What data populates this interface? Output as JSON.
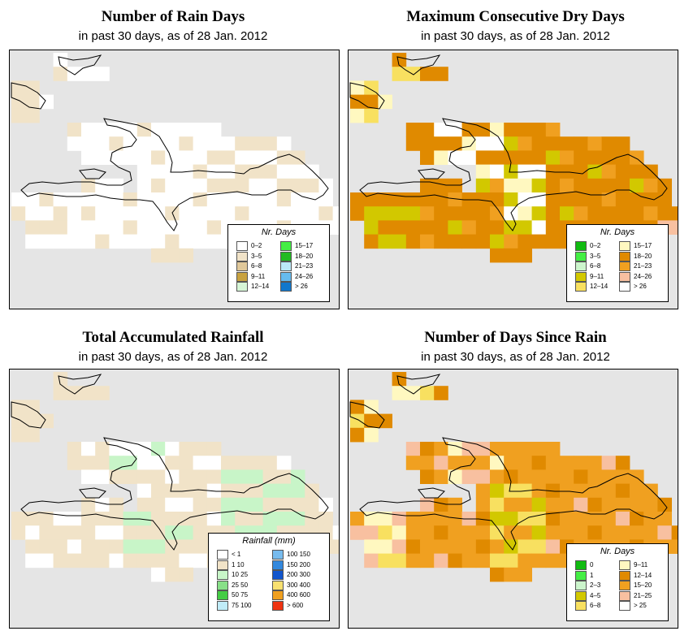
{
  "panels": [
    {
      "title": "Number of Rain Days",
      "subtitle": "in past 30 days, as of  28 Jan. 2012",
      "legend": {
        "title": "Nr. Days",
        "items": [
          {
            "label": "0–2",
            "color": "#ffffff"
          },
          {
            "label": "3–5",
            "color": "#f1e3c8"
          },
          {
            "label": "6–8",
            "color": "#e0c89a"
          },
          {
            "label": "9–11",
            "color": "#c8a240"
          },
          {
            "label": "12–14",
            "color": "#d6f5d6"
          },
          {
            "label": "15–17",
            "color": "#44ee44"
          },
          {
            "label": "18–20",
            "color": "#22bb22"
          },
          {
            "label": "21–23",
            "color": "#bbe8f8"
          },
          {
            "label": "24–26",
            "color": "#66bbee"
          },
          {
            "label": "> 26",
            "color": "#1177cc"
          }
        ]
      }
    },
    {
      "title": "Maximum Consecutive Dry Days",
      "subtitle": "in past 30 days, as of  28 Jan. 2012",
      "legend": {
        "title": "Nr. Days",
        "items": [
          {
            "label": "0–2",
            "color": "#11bb11"
          },
          {
            "label": "3–5",
            "color": "#44ee44"
          },
          {
            "label": "6–8",
            "color": "#ccf5cc"
          },
          {
            "label": "9–11",
            "color": "#d2c800"
          },
          {
            "label": "12–14",
            "color": "#f8e060"
          },
          {
            "label": "15–17",
            "color": "#fff8c0"
          },
          {
            "label": "18–20",
            "color": "#e08a00"
          },
          {
            "label": "21–23",
            "color": "#f0a020"
          },
          {
            "label": "24–26",
            "color": "#f8c0a0"
          },
          {
            "label": "> 26",
            "color": "#ffffff"
          }
        ]
      }
    },
    {
      "title": "Total Accumulated Rainfall",
      "subtitle": "in past 30 days, as of  28 Jan. 2012",
      "legend": {
        "title": "Rainfall (mm)",
        "items": [
          {
            "label": "< 1",
            "color": "#ffffff"
          },
          {
            "label": "1    10",
            "color": "#f1e3c8"
          },
          {
            "label": "10    25",
            "color": "#c8f5c8"
          },
          {
            "label": "25    50",
            "color": "#88e088"
          },
          {
            "label": "50    75",
            "color": "#44cc44"
          },
          {
            "label": "75   100",
            "color": "#c0ecf8"
          },
          {
            "label": "100   150",
            "color": "#77bbee"
          },
          {
            "label": "150   200",
            "color": "#3388dd"
          },
          {
            "label": "200   300",
            "color": "#1155cc"
          },
          {
            "label": "300   400",
            "color": "#f8e070"
          },
          {
            "label": "400   600",
            "color": "#f0a020"
          },
          {
            "label": "> 600",
            "color": "#ee3311"
          }
        ]
      }
    },
    {
      "title": "Number of Days Since Rain",
      "subtitle": "in past 30 days, as of  28 Jan. 2012",
      "legend": {
        "title": "Nr. Days",
        "items": [
          {
            "label": "0",
            "color": "#11bb11"
          },
          {
            "label": "1",
            "color": "#44ee44"
          },
          {
            "label": "2–3",
            "color": "#ccf5cc"
          },
          {
            "label": "4–5",
            "color": "#d2c800"
          },
          {
            "label": "6–8",
            "color": "#f8e060"
          },
          {
            "label": "9–11",
            "color": "#fff8c0"
          },
          {
            "label": "12–14",
            "color": "#e08a00"
          },
          {
            "label": "15–20",
            "color": "#f0a020"
          },
          {
            "label": "21–25",
            "color": "#f8c0a0"
          },
          {
            "label": "> 25",
            "color": "#ffffff"
          }
        ]
      }
    }
  ]
}
